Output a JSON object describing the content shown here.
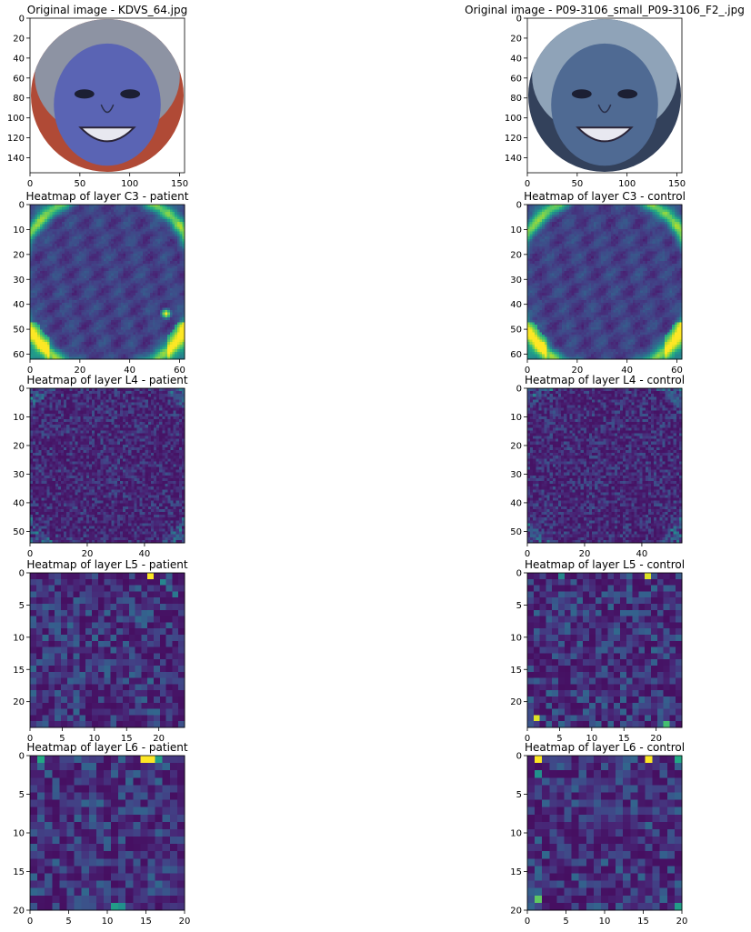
{
  "figure": {
    "background": "#ffffff"
  },
  "chart_data": [
    {
      "id": "orig-patient",
      "type": "heatmap",
      "content": "photo-face",
      "title": "Original image - KDVS_64.jpg",
      "extent": [
        0,
        155
      ],
      "xticks": [
        0,
        50,
        100,
        150
      ],
      "yticks": [
        0,
        20,
        40,
        60,
        80,
        100,
        120,
        140
      ],
      "tint": "#5a64b4",
      "background_tint": "#b04a36",
      "hair": "#8d93a3"
    },
    {
      "id": "orig-control",
      "type": "heatmap",
      "content": "photo-face",
      "title": "Original image - P09-3106_small_P09-3106_F2_.jpg",
      "extent": [
        0,
        155
      ],
      "xticks": [
        0,
        50,
        100,
        150
      ],
      "yticks": [
        0,
        20,
        40,
        60,
        80,
        100,
        120,
        140
      ],
      "tint": "#4f6a93",
      "background_tint": "#33415b",
      "hair": "#8fa3b8"
    },
    {
      "id": "c3-patient",
      "type": "heatmap",
      "content": "activation",
      "pattern": "ring",
      "title": "Heatmap of layer C3 - patient",
      "size": 63,
      "extent": [
        0,
        62
      ],
      "xticks": [
        0,
        20,
        40,
        60
      ],
      "yticks": [
        0,
        10,
        20,
        30,
        40,
        50,
        60
      ],
      "colormap": "viridis",
      "seed": 11,
      "hotspots": [
        [
          55,
          44,
          1.0,
          1.6
        ]
      ]
    },
    {
      "id": "c3-control",
      "type": "heatmap",
      "content": "activation",
      "pattern": "ring",
      "title": "Heatmap of layer C3 - control",
      "size": 63,
      "extent": [
        0,
        62
      ],
      "xticks": [
        0,
        20,
        40,
        60
      ],
      "yticks": [
        0,
        10,
        20,
        30,
        40,
        50,
        60
      ],
      "colormap": "viridis",
      "seed": 23,
      "hotspots": []
    },
    {
      "id": "l4-patient",
      "type": "heatmap",
      "content": "activation",
      "pattern": "speckle",
      "title": "Heatmap of layer L4 - patient",
      "size": 55,
      "extent": [
        0,
        54
      ],
      "xticks": [
        0,
        20,
        40
      ],
      "yticks": [
        0,
        10,
        20,
        30,
        40,
        50
      ],
      "colormap": "viridis",
      "seed": 37,
      "hotspots": []
    },
    {
      "id": "l4-control",
      "type": "heatmap",
      "content": "activation",
      "pattern": "speckle",
      "title": "Heatmap of layer L4 - control",
      "size": 55,
      "extent": [
        0,
        54
      ],
      "xticks": [
        0,
        20,
        40
      ],
      "yticks": [
        0,
        10,
        20,
        30,
        40,
        50
      ],
      "colormap": "viridis",
      "seed": 41,
      "hotspots": []
    },
    {
      "id": "l5-patient",
      "type": "heatmap",
      "content": "activation",
      "pattern": "coarse",
      "title": "Heatmap of layer L5 - patient",
      "size": 25,
      "extent": [
        0,
        24
      ],
      "xticks": [
        0,
        5,
        10,
        15,
        20
      ],
      "yticks": [
        0,
        5,
        10,
        15,
        20
      ],
      "colormap": "viridis",
      "seed": 53,
      "hotspots": [
        [
          19,
          0,
          1.0,
          0
        ],
        [
          21,
          1,
          0.45,
          0
        ],
        [
          23,
          3,
          0.4,
          0
        ]
      ]
    },
    {
      "id": "l5-control",
      "type": "heatmap",
      "content": "activation",
      "pattern": "coarse",
      "title": "Heatmap of layer L5 - control",
      "size": 25,
      "extent": [
        0,
        24
      ],
      "xticks": [
        0,
        5,
        10,
        15,
        20
      ],
      "yticks": [
        0,
        5,
        10,
        15,
        20
      ],
      "colormap": "viridis",
      "seed": 67,
      "hotspots": [
        [
          19,
          0,
          0.95,
          0
        ],
        [
          1,
          23,
          0.95,
          0
        ],
        [
          22,
          24,
          0.7,
          0
        ],
        [
          5,
          0,
          0.45,
          0
        ]
      ]
    },
    {
      "id": "l6-patient",
      "type": "heatmap",
      "content": "activation",
      "pattern": "coarse",
      "title": "Heatmap of layer L6 - patient",
      "size": 21,
      "extent": [
        0,
        20
      ],
      "xticks": [
        0,
        5,
        10,
        15,
        20
      ],
      "yticks": [
        0,
        5,
        10,
        15,
        20
      ],
      "colormap": "viridis",
      "seed": 71,
      "hotspots": [
        [
          15,
          0,
          1.0,
          0
        ],
        [
          16,
          0,
          1.0,
          0
        ],
        [
          1,
          0,
          0.6,
          0
        ],
        [
          17,
          0,
          0.55,
          0
        ],
        [
          11,
          20,
          0.55,
          0
        ],
        [
          12,
          20,
          0.5,
          0
        ]
      ]
    },
    {
      "id": "l6-control",
      "type": "heatmap",
      "content": "activation",
      "pattern": "coarse",
      "title": "Heatmap of layer L6 - control",
      "size": 21,
      "extent": [
        0,
        20
      ],
      "xticks": [
        0,
        5,
        10,
        15,
        20
      ],
      "yticks": [
        0,
        5,
        10,
        15,
        20
      ],
      "colormap": "viridis",
      "seed": 83,
      "hotspots": [
        [
          1,
          0,
          1.0,
          0
        ],
        [
          16,
          0,
          1.0,
          0
        ],
        [
          1,
          19,
          0.75,
          0
        ],
        [
          20,
          0,
          0.6,
          0
        ],
        [
          20,
          20,
          0.55,
          0
        ],
        [
          1,
          2,
          0.5,
          0
        ]
      ]
    }
  ]
}
